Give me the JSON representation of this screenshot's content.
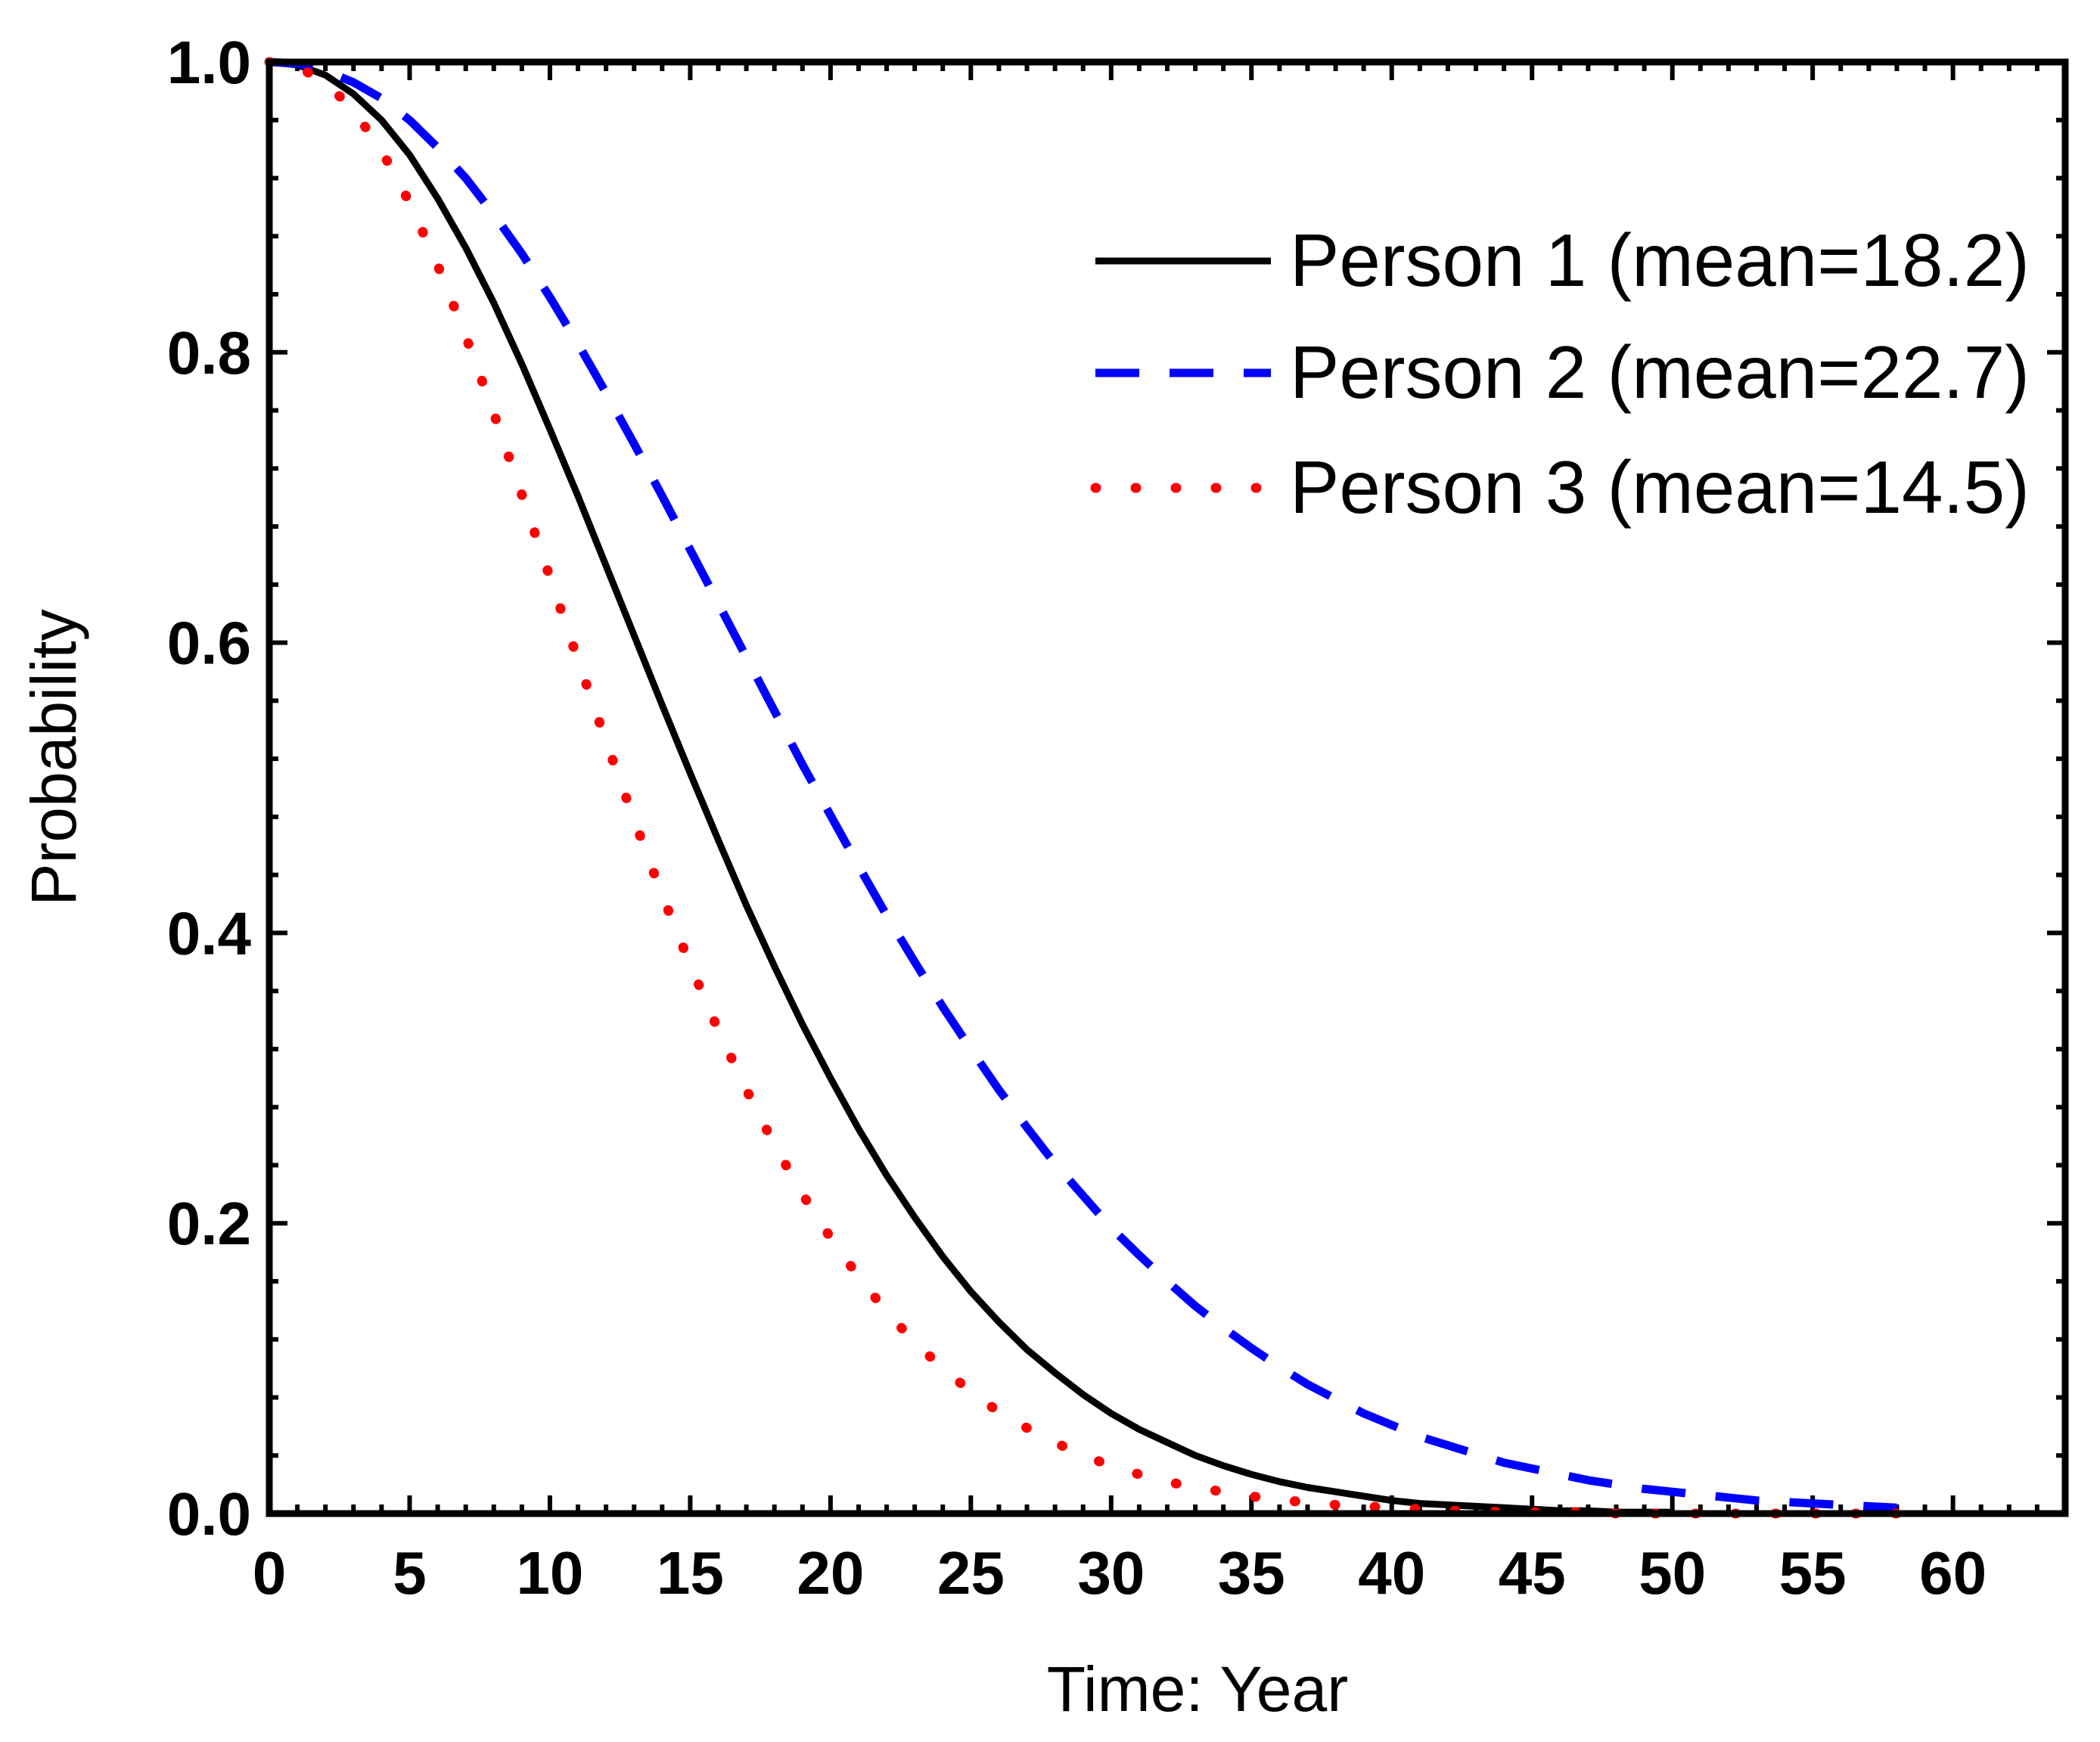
{
  "chart_data": {
    "type": "line",
    "xlabel": "Time: Year",
    "ylabel": "Probability",
    "xlim": [
      0,
      64
    ],
    "ylim": [
      0,
      1
    ],
    "xticks": [
      0,
      5,
      10,
      15,
      20,
      25,
      30,
      35,
      40,
      45,
      50,
      55,
      60
    ],
    "xtick_labels": [
      "0",
      "5",
      "10",
      "15",
      "20",
      "25",
      "30",
      "35",
      "40",
      "45",
      "50",
      "55",
      "60"
    ],
    "yticks": [
      0.0,
      0.2,
      0.4,
      0.6,
      0.8,
      1.0
    ],
    "ytick_labels": [
      "0.0",
      "0.2",
      "0.4",
      "0.6",
      "0.8",
      "1.0"
    ],
    "legend_position": "top-right",
    "series": [
      {
        "name": "Person 1 (mean=18.2)",
        "color": "#000000",
        "style": "solid",
        "x": [
          0,
          1,
          2,
          3,
          4,
          5,
          6,
          7,
          8,
          9,
          10,
          11,
          12,
          13,
          14,
          15,
          16,
          17,
          18,
          19,
          20,
          21,
          22,
          23,
          24,
          25,
          26,
          27,
          28,
          29,
          30,
          31,
          32,
          33,
          34,
          35,
          36,
          37,
          38,
          39,
          40,
          41,
          42,
          43,
          44,
          45,
          46,
          47,
          48,
          49,
          50
        ],
        "values": [
          1.0,
          0.998,
          0.991,
          0.978,
          0.96,
          0.936,
          0.906,
          0.872,
          0.834,
          0.792,
          0.747,
          0.701,
          0.653,
          0.605,
          0.557,
          0.51,
          0.464,
          0.419,
          0.377,
          0.337,
          0.3,
          0.265,
          0.233,
          0.204,
          0.177,
          0.153,
          0.132,
          0.113,
          0.097,
          0.082,
          0.069,
          0.058,
          0.049,
          0.04,
          0.033,
          0.027,
          0.022,
          0.018,
          0.015,
          0.012,
          0.009,
          0.007,
          0.006,
          0.005,
          0.004,
          0.003,
          0.002,
          0.002,
          0.001,
          0.001,
          0.001
        ]
      },
      {
        "name": "Person 2 (mean=22.7)",
        "color": "#0000ff",
        "style": "dashed",
        "x": [
          0,
          1,
          2,
          3,
          4,
          5,
          6,
          7,
          8,
          9,
          10,
          11,
          12,
          13,
          14,
          15,
          16,
          17,
          18,
          19,
          20,
          21,
          22,
          23,
          24,
          25,
          26,
          27,
          28,
          29,
          30,
          31,
          32,
          33,
          34,
          35,
          36,
          37,
          38,
          39,
          40,
          41,
          42,
          43,
          44,
          45,
          46,
          47,
          48,
          49,
          50,
          51,
          52,
          53,
          54,
          55,
          56,
          57,
          58
        ],
        "values": [
          1.0,
          0.999,
          0.994,
          0.986,
          0.975,
          0.96,
          0.941,
          0.92,
          0.895,
          0.868,
          0.838,
          0.806,
          0.772,
          0.737,
          0.701,
          0.664,
          0.627,
          0.59,
          0.553,
          0.516,
          0.481,
          0.446,
          0.412,
          0.38,
          0.349,
          0.32,
          0.292,
          0.266,
          0.241,
          0.219,
          0.197,
          0.178,
          0.16,
          0.143,
          0.128,
          0.114,
          0.101,
          0.089,
          0.079,
          0.069,
          0.061,
          0.053,
          0.047,
          0.041,
          0.035,
          0.031,
          0.027,
          0.023,
          0.02,
          0.017,
          0.015,
          0.013,
          0.011,
          0.009,
          0.008,
          0.007,
          0.006,
          0.005,
          0.004
        ]
      },
      {
        "name": "Person 3 (mean=14.5)",
        "color": "#ff0000",
        "style": "dotted",
        "x": [
          0,
          1,
          2,
          3,
          4,
          5,
          6,
          7,
          8,
          9,
          10,
          11,
          12,
          13,
          14,
          15,
          16,
          17,
          18,
          19,
          20,
          21,
          22,
          23,
          24,
          25,
          26,
          27,
          28,
          29,
          30,
          31,
          32,
          33,
          34,
          35,
          36,
          37,
          38,
          39,
          40,
          41,
          42,
          43,
          44,
          45,
          46,
          47,
          48,
          49,
          50,
          51,
          52,
          53,
          54,
          55,
          56,
          57,
          58
        ],
        "values": [
          1.0,
          0.997,
          0.986,
          0.967,
          0.939,
          0.903,
          0.86,
          0.811,
          0.758,
          0.702,
          0.645,
          0.588,
          0.532,
          0.478,
          0.426,
          0.378,
          0.333,
          0.292,
          0.254,
          0.22,
          0.19,
          0.163,
          0.139,
          0.118,
          0.1,
          0.084,
          0.07,
          0.059,
          0.049,
          0.04,
          0.033,
          0.027,
          0.022,
          0.018,
          0.015,
          0.012,
          0.009,
          0.008,
          0.006,
          0.005,
          0.004,
          0.003,
          0.002,
          0.002,
          0.001,
          0.001,
          0.001,
          0.001,
          0.0,
          0.0,
          0.0,
          0.0,
          0.0,
          0.0,
          0.0,
          0.0,
          0.0,
          0.0,
          0.0
        ]
      }
    ]
  }
}
